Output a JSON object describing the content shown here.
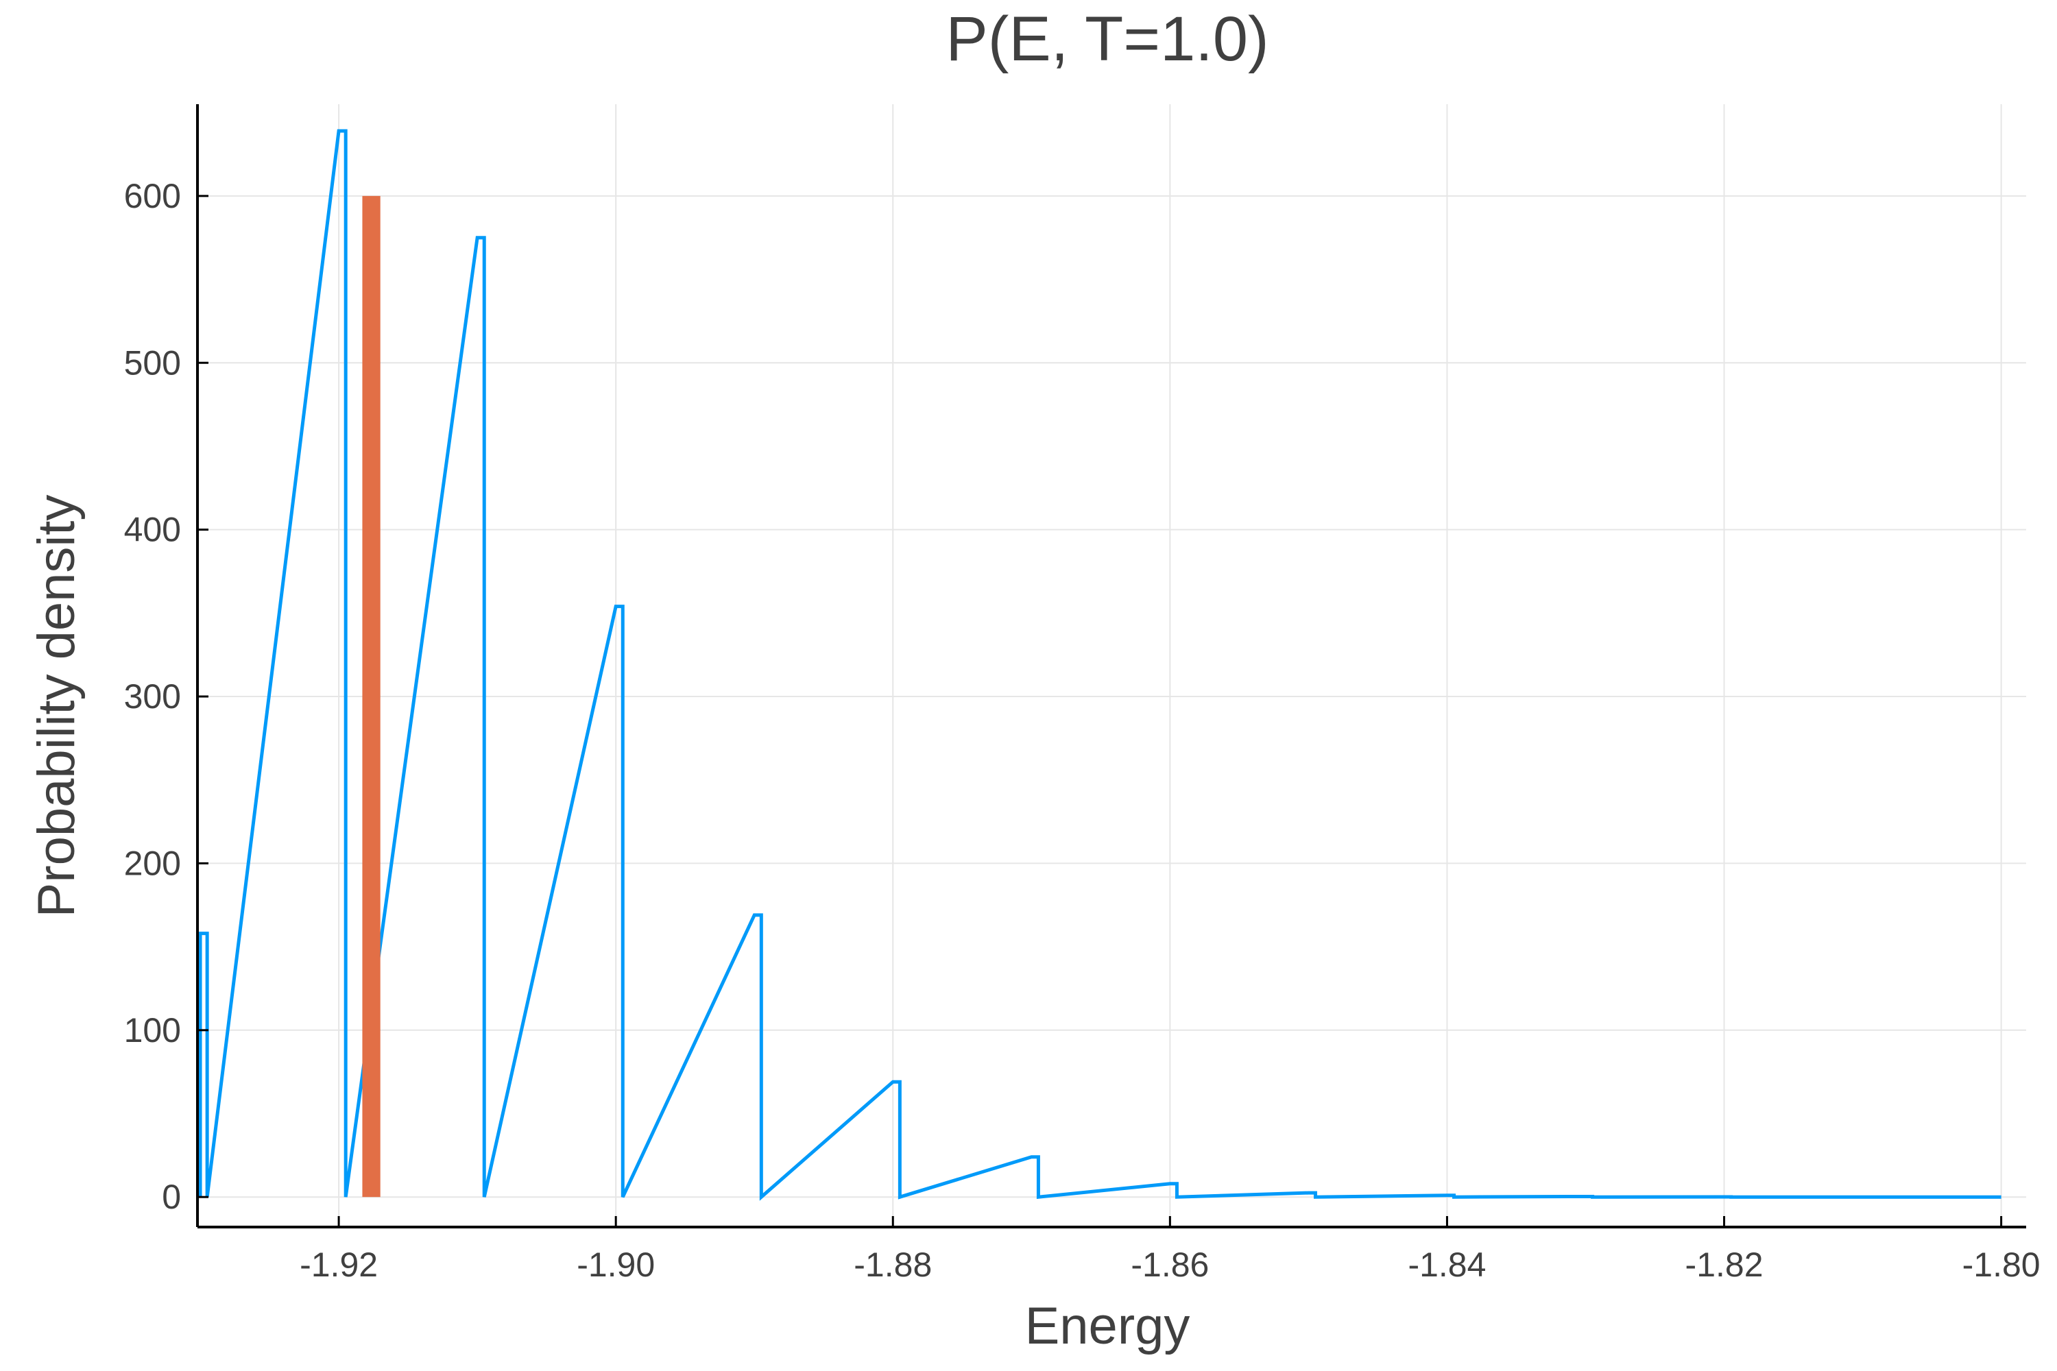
{
  "chart_data": {
    "type": "histogram",
    "title": "P(E, T=1.0)",
    "xlabel": "Energy",
    "ylabel": "Probability density",
    "xlim": [
      -1.9302,
      -1.7982
    ],
    "ylim": [
      -18,
      655
    ],
    "xticks": [
      -1.92,
      -1.9,
      -1.88,
      -1.86,
      -1.84,
      -1.82,
      -1.8
    ],
    "xtick_labels": [
      "-1.92",
      "-1.90",
      "-1.88",
      "-1.86",
      "-1.84",
      "-1.82",
      "-1.80"
    ],
    "yticks": [
      0,
      100,
      200,
      300,
      400,
      500,
      600
    ],
    "ytick_labels": [
      "0",
      "100",
      "200",
      "300",
      "400",
      "500",
      "600"
    ],
    "grid": true,
    "legend": "none",
    "series": [
      {
        "kind": "step",
        "color": "#009AF9",
        "bin_width": 0.0005,
        "peaks": [
          {
            "x": -1.93,
            "y": 158
          },
          {
            "x": -1.92,
            "y": 639
          },
          {
            "x": -1.91,
            "y": 575
          },
          {
            "x": -1.9,
            "y": 354
          },
          {
            "x": -1.89,
            "y": 169
          },
          {
            "x": -1.88,
            "y": 69
          },
          {
            "x": -1.87,
            "y": 24
          },
          {
            "x": -1.86,
            "y": 8
          },
          {
            "x": -1.85,
            "y": 2.5
          },
          {
            "x": -1.84,
            "y": 1
          },
          {
            "x": -1.83,
            "y": 0.3
          },
          {
            "x": -1.82,
            "y": 0.1
          }
        ],
        "x_end": -1.8
      },
      {
        "kind": "bar",
        "color": "#E26F46",
        "x_start": -1.9183,
        "x_end": -1.917,
        "y": 600
      }
    ]
  }
}
